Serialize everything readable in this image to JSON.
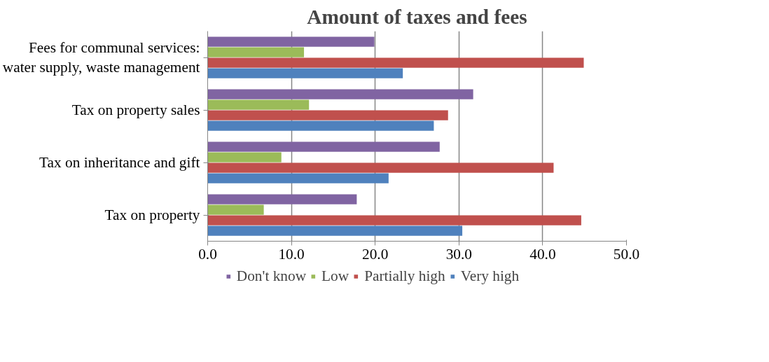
{
  "chart_data": {
    "type": "bar",
    "orientation": "horizontal",
    "title": "Amount of taxes and fees",
    "categories": [
      "Fees for communal services: water supply, waste management",
      "Tax on property sales",
      "Tax on inheritance and gift",
      "Tax on property"
    ],
    "series": [
      {
        "name": "Don't know",
        "color": "#8064a2",
        "values": [
          19.9,
          31.7,
          27.7,
          17.8
        ]
      },
      {
        "name": "Low",
        "color": "#9bbb59",
        "values": [
          11.5,
          12.1,
          8.8,
          6.7
        ]
      },
      {
        "name": "Partially high",
        "color": "#c0504d",
        "values": [
          44.9,
          28.7,
          41.3,
          44.6
        ]
      },
      {
        "name": "Very high",
        "color": "#4f81bd",
        "values": [
          23.3,
          27.0,
          21.6,
          30.4
        ]
      }
    ],
    "xlim": [
      0,
      50
    ],
    "xticks": [
      {
        "value": 0,
        "label": "0.0"
      },
      {
        "value": 10,
        "label": "10.0"
      },
      {
        "value": 20,
        "label": "20.0"
      },
      {
        "value": 30,
        "label": "30.0"
      },
      {
        "value": 40,
        "label": "40.0"
      },
      {
        "value": 50,
        "label": "50.0"
      }
    ],
    "grid": "x",
    "legend": "bottom"
  }
}
